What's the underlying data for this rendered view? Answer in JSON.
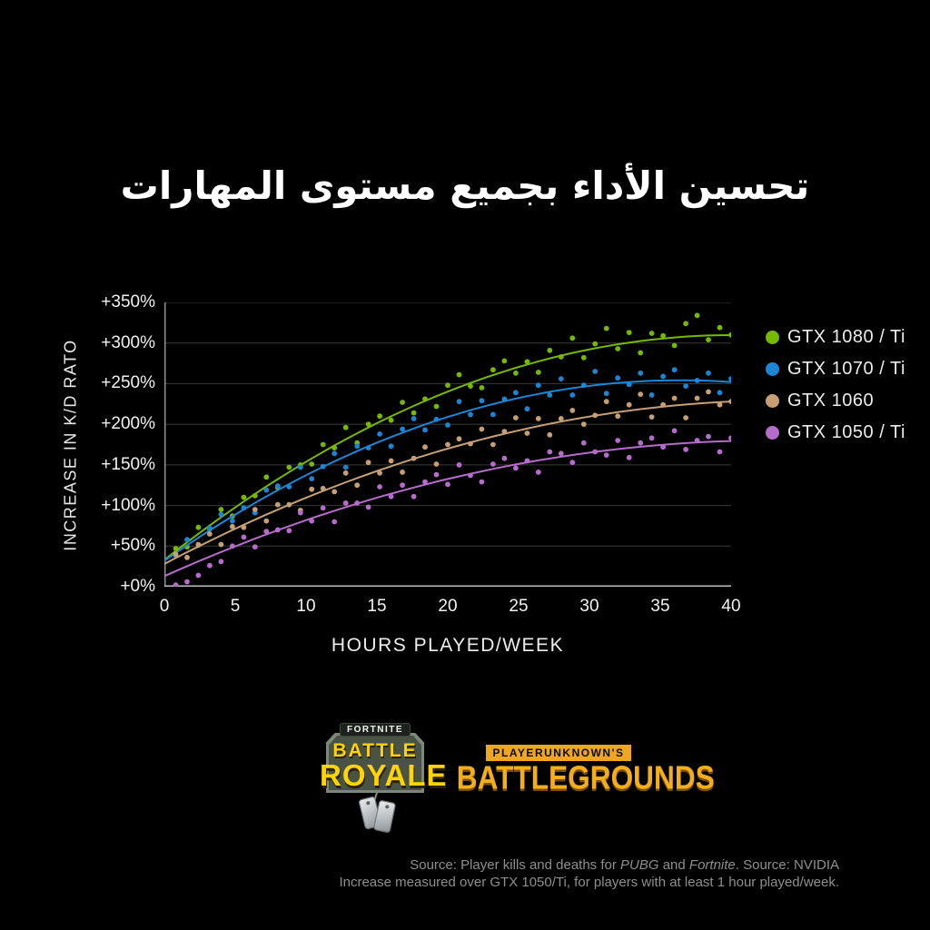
{
  "title": {
    "text": "تحسين الأداء بجميع مستوى المهارات"
  },
  "chart_data": {
    "type": "scatter",
    "xlabel": "HOURS PLAYED/WEEK",
    "ylabel": "INCREASE IN K/D RATO",
    "xlim": [
      0,
      40
    ],
    "ylim": [
      0,
      350
    ],
    "x_ticks": [
      0,
      5,
      10,
      15,
      20,
      25,
      30,
      35,
      40
    ],
    "y_ticks": [
      "+0%",
      "+50%",
      "+100%",
      "+150%",
      "+200%",
      "+250%",
      "+300%",
      "+350%"
    ],
    "y_tick_values": [
      0,
      50,
      100,
      150,
      200,
      250,
      300,
      350
    ],
    "grid": "horizontal-only",
    "legend_position": "right",
    "colors": {
      "background": "#000000",
      "gridline": "#3a3a3a",
      "x_axis_line": "#c0c0c0",
      "y_axis_line": "#8f8f8f",
      "tick_text": "#f2f2f2",
      "source_text": "#8e8e8e"
    },
    "x_start": 0.8,
    "x_step": 0.8,
    "series": [
      {
        "name": "GTX 1080 / Ti",
        "color": "#76b900",
        "trend": {
          "a": 33,
          "b": 13.8,
          "c": -0.172
        },
        "scatter_y": [
          47,
          49,
          73,
          71,
          95,
          87,
          110,
          112,
          135,
          122,
          147,
          150,
          151,
          175,
          171,
          196,
          177,
          200,
          210,
          205,
          227,
          214,
          231,
          222,
          248,
          261,
          247,
          245,
          267,
          278,
          263,
          277,
          264,
          291,
          283,
          306,
          282,
          299,
          318,
          293,
          313,
          288,
          312,
          309,
          297,
          324,
          334,
          304,
          319,
          310
        ]
      },
      {
        "name": "GTX 1070 / Ti",
        "color": "#1b86d6",
        "trend": {
          "a": 32,
          "b": 12.2,
          "c": -0.1675
        },
        "scatter_y": [
          38,
          58,
          51,
          72,
          89,
          81,
          97,
          91,
          119,
          124,
          123,
          147,
          133,
          148,
          164,
          147,
          173,
          171,
          188,
          173,
          194,
          207,
          193,
          206,
          199,
          228,
          212,
          229,
          212,
          231,
          239,
          219,
          248,
          236,
          256,
          236,
          248,
          265,
          238,
          257,
          249,
          263,
          236,
          259,
          267,
          247,
          254,
          263,
          239,
          256
        ]
      },
      {
        "name": "GTX 1060",
        "color": "#c6a074",
        "trend": {
          "a": 28,
          "b": 9.2,
          "c": -0.105
        },
        "scatter_y": [
          40,
          36,
          52,
          65,
          52,
          74,
          73,
          95,
          81,
          101,
          101,
          94,
          120,
          121,
          117,
          140,
          125,
          153,
          140,
          155,
          141,
          158,
          172,
          151,
          175,
          182,
          176,
          194,
          175,
          191,
          208,
          189,
          207,
          187,
          207,
          217,
          200,
          211,
          228,
          210,
          224,
          237,
          209,
          224,
          232,
          208,
          232,
          240,
          224,
          228
        ]
      },
      {
        "name": "GTX 1050 / Ti",
        "color": "#b56cca",
        "trend": {
          "a": 13,
          "b": 7.8,
          "c": -0.091
        },
        "scatter_y": [
          2,
          6,
          14,
          26,
          31,
          50,
          61,
          49,
          68,
          70,
          69,
          91,
          81,
          97,
          80,
          103,
          103,
          98,
          123,
          111,
          125,
          111,
          129,
          138,
          126,
          150,
          137,
          129,
          151,
          158,
          146,
          155,
          141,
          166,
          164,
          153,
          177,
          166,
          162,
          180,
          159,
          177,
          183,
          172,
          192,
          169,
          180,
          185,
          166,
          183
        ]
      }
    ]
  },
  "logos": {
    "fortnite": {
      "top": "FORTNITE",
      "line1": "BATTLE",
      "line2": "ROYALE"
    },
    "pubg": {
      "top": "PLAYERUNKNOWN'S",
      "bottom": "BATTLEGROUNDS"
    }
  },
  "source": {
    "l1a": "Source: Player kills and deaths for ",
    "l1b": "PUBG",
    "l1c": " and ",
    "l1d": "Fortnite",
    "l1e": ". Source: NVIDIA",
    "line2": "Increase measured over GTX 1050/Ti, for players with at least 1 hour played/week."
  }
}
